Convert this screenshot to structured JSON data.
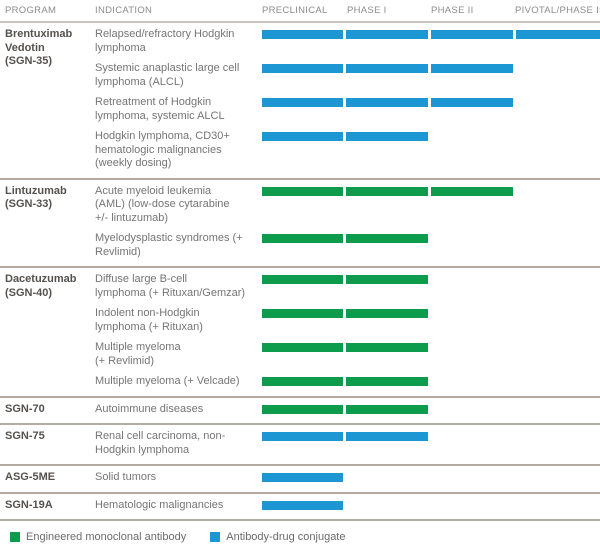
{
  "colors": {
    "mab": "#0d9b4c",
    "adc": "#1d96d4"
  },
  "chart_data": {
    "type": "table",
    "columns": [
      "PROGRAM",
      "INDICATION",
      "PRECLINICAL",
      "PHASE I",
      "PHASE II",
      "PIVOTAL/PHASE III"
    ],
    "phases": [
      "PRECLINICAL",
      "PHASE I",
      "PHASE II",
      "PIVOTAL/PHASE III"
    ],
    "legend": [
      {
        "key": "mab",
        "label": "Engineered monoclonal antibody"
      },
      {
        "key": "adc",
        "label": "Antibody-drug conjugate"
      }
    ],
    "legend_position": "bottom-left",
    "programs": [
      {
        "name": "Brentuximab Vedotin (SGN-35)",
        "name_display": "Brentuximab\nVedotin\n(SGN-35)",
        "agent": "adc",
        "indications": [
          {
            "text": "Relapsed/refractory Hodgkin lymphoma",
            "text_display": "Relapsed/refractory Hodgkin\nlymphoma",
            "phases_completed": 4,
            "furthest_phase": "PIVOTAL/PHASE III"
          },
          {
            "text": "Systemic anaplastic large cell lymphoma (ALCL)",
            "text_display": "Systemic anaplastic large cell\nlymphoma (ALCL)",
            "phases_completed": 3,
            "furthest_phase": "PHASE II"
          },
          {
            "text": "Retreatment of Hodgkin lymphoma, systemic ALCL",
            "text_display": "Retreatment of Hodgkin\nlymphoma, systemic ALCL",
            "phases_completed": 3,
            "furthest_phase": "PHASE II"
          },
          {
            "text": "Hodgkin lymphoma, CD30+ hematologic malignancies (weekly dosing)",
            "text_display": "Hodgkin lymphoma, CD30+\nhematologic malignancies\n(weekly dosing)",
            "phases_completed": 2,
            "furthest_phase": "PHASE I"
          }
        ]
      },
      {
        "name": "Lintuzumab (SGN-33)",
        "name_display": "Lintuzumab\n(SGN-33)",
        "agent": "mab",
        "indications": [
          {
            "text": "Acute myeloid leukemia (AML) (low-dose cytarabine +/- lintuzumab)",
            "text_display": "Acute myeloid leukemia\n(AML) (low-dose cytarabine\n+/- lintuzumab)",
            "phases_completed": 3,
            "furthest_phase": "PHASE II"
          },
          {
            "text": "Myelodysplastic syndromes (+ Revlimid)",
            "text_display": "Myelodysplastic syndromes (+\nRevlimid)",
            "phases_completed": 2,
            "furthest_phase": "PHASE I"
          }
        ]
      },
      {
        "name": "Dacetuzumab (SGN-40)",
        "name_display": "Dacetuzumab\n(SGN-40)",
        "agent": "mab",
        "indications": [
          {
            "text": "Diffuse large B-cell lymphoma (+ Rituxan/Gemzar)",
            "text_display": "Diffuse large B-cell\nlymphoma (+ Rituxan/Gemzar)",
            "phases_completed": 2,
            "furthest_phase": "PHASE I"
          },
          {
            "text": "Indolent non-Hodgkin lymphoma (+ Rituxan)",
            "text_display": "Indolent non-Hodgkin\nlymphoma (+ Rituxan)",
            "phases_completed": 2,
            "furthest_phase": "PHASE I"
          },
          {
            "text": "Multiple myeloma (+ Revlimid)",
            "text_display": "Multiple myeloma\n(+ Revlimid)",
            "phases_completed": 2,
            "furthest_phase": "PHASE I"
          },
          {
            "text": "Multiple myeloma (+ Velcade)",
            "text_display": "Multiple myeloma (+ Velcade)",
            "phases_completed": 2,
            "furthest_phase": "PHASE I"
          }
        ]
      },
      {
        "name": "SGN-70",
        "name_display": "SGN-70",
        "agent": "mab",
        "indications": [
          {
            "text": "Autoimmune diseases",
            "text_display": "Autoimmune diseases",
            "phases_completed": 2,
            "furthest_phase": "PHASE I"
          }
        ]
      },
      {
        "name": "SGN-75",
        "name_display": "SGN-75",
        "agent": "adc",
        "indications": [
          {
            "text": "Renal cell carcinoma, non-Hodgkin lymphoma",
            "text_display": "Renal cell carcinoma, non-\nHodgkin lymphoma",
            "phases_completed": 2,
            "furthest_phase": "PHASE I"
          }
        ]
      },
      {
        "name": "ASG-5ME",
        "name_display": "ASG-5ME",
        "agent": "adc",
        "indications": [
          {
            "text": "Solid tumors",
            "text_display": "Solid tumors",
            "phases_completed": 1,
            "furthest_phase": "PRECLINICAL"
          }
        ]
      },
      {
        "name": "SGN-19A",
        "name_display": "SGN-19A",
        "agent": "adc",
        "indications": [
          {
            "text": "Hematologic malignancies",
            "text_display": "Hematologic malignancies",
            "phases_completed": 1,
            "furthest_phase": "PRECLINICAL"
          }
        ]
      }
    ]
  }
}
